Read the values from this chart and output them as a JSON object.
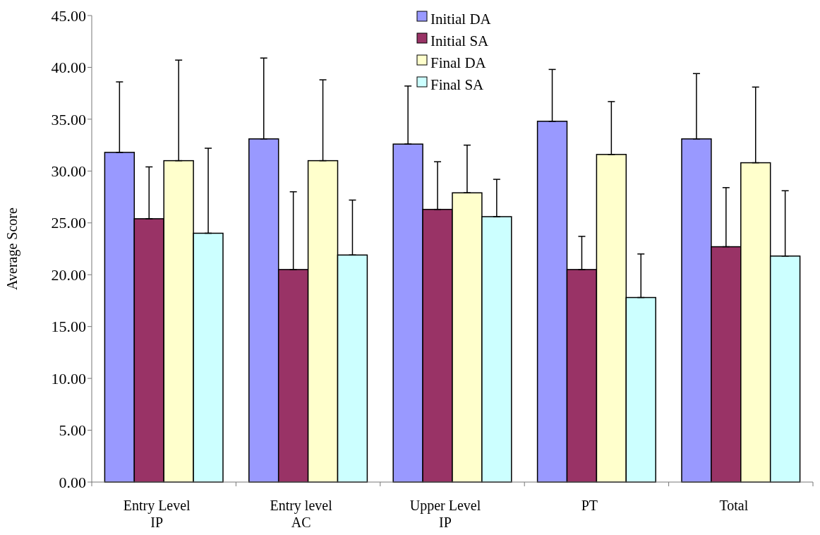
{
  "chart_data": {
    "type": "bar",
    "ylabel": "Average Score",
    "categories": [
      "Entry Level\nIP",
      "Entry level\nAC",
      "Upper Level\nIP",
      "PT",
      "Total"
    ],
    "series": [
      {
        "name": "Initial DA",
        "color": "#9999ff",
        "values": [
          31.8,
          33.1,
          32.6,
          34.8,
          33.1
        ],
        "errors": [
          [
            31.8,
            38.6
          ],
          [
            33.1,
            40.9
          ],
          [
            32.6,
            38.2
          ],
          [
            34.8,
            39.8
          ],
          [
            33.1,
            39.4
          ]
        ]
      },
      {
        "name": "Initial SA",
        "color": "#993366",
        "values": [
          25.4,
          20.5,
          26.3,
          20.5,
          22.7
        ],
        "errors": [
          [
            25.4,
            30.4
          ],
          [
            20.5,
            28.0
          ],
          [
            26.3,
            30.9
          ],
          [
            20.5,
            23.7
          ],
          [
            22.7,
            28.4
          ]
        ]
      },
      {
        "name": "Final DA",
        "color": "#ffffcc",
        "values": [
          31.0,
          31.0,
          27.9,
          31.6,
          30.8
        ],
        "errors": [
          [
            31.0,
            40.7
          ],
          [
            31.0,
            38.8
          ],
          [
            27.9,
            32.5
          ],
          [
            31.6,
            36.7
          ],
          [
            30.8,
            38.1
          ]
        ]
      },
      {
        "name": "Final SA",
        "color": "#ccffff",
        "values": [
          24.0,
          21.9,
          25.6,
          17.8,
          21.8
        ],
        "errors": [
          [
            24.0,
            32.2
          ],
          [
            21.9,
            27.2
          ],
          [
            25.6,
            29.2
          ],
          [
            17.8,
            22.0
          ],
          [
            21.8,
            28.1
          ]
        ]
      }
    ],
    "ylim": [
      0,
      45
    ],
    "yticks": [
      {
        "value": 0,
        "label": "0.00"
      },
      {
        "value": 5,
        "label": "5.00"
      },
      {
        "value": 10,
        "label": "10.00"
      },
      {
        "value": 15,
        "label": "15.00"
      },
      {
        "value": 20,
        "label": "20.00"
      },
      {
        "value": 25,
        "label": "25.00"
      },
      {
        "value": 30,
        "label": "30.00"
      },
      {
        "value": 35,
        "label": "35.00"
      },
      {
        "value": 40,
        "label": "40.00"
      },
      {
        "value": 45,
        "label": "45.00"
      }
    ],
    "grid": false,
    "legend": "top"
  }
}
